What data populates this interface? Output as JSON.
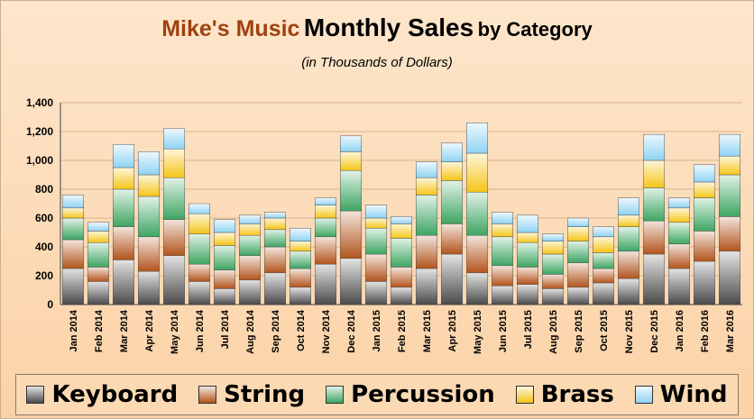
{
  "title": {
    "brand": "Mike's Music",
    "main": "Monthly Sales",
    "suffix": "by Category"
  },
  "subtitle": "(in Thousands of Dollars)",
  "chart_data": {
    "type": "bar",
    "stacked": true,
    "categories": [
      "Jan 2014",
      "Feb 2014",
      "Mar 2014",
      "Apr 2014",
      "May 2014",
      "Jun 2014",
      "Jul 2014",
      "Aug 2014",
      "Sep 2014",
      "Oct 2014",
      "Nov 2014",
      "Dec 2014",
      "Jan 2015",
      "Feb 2015",
      "Mar 2015",
      "Apr 2015",
      "May 2015",
      "Jun 2015",
      "Jul 2015",
      "Aug 2015",
      "Sep 2015",
      "Oct 2015",
      "Nov 2015",
      "Dec 2015",
      "Jan 2016",
      "Feb 2016",
      "Mar 2016"
    ],
    "series": [
      {
        "name": "Keyboard",
        "color": "#4a4a4a",
        "values": [
          250,
          160,
          310,
          230,
          340,
          160,
          110,
          170,
          220,
          120,
          280,
          320,
          160,
          120,
          250,
          350,
          220,
          130,
          140,
          110,
          120,
          150,
          180,
          350,
          250,
          300,
          370
        ]
      },
      {
        "name": "String",
        "color": "#b2541c",
        "values": [
          200,
          100,
          230,
          240,
          250,
          120,
          130,
          170,
          180,
          130,
          190,
          330,
          190,
          140,
          230,
          210,
          260,
          140,
          120,
          100,
          170,
          100,
          190,
          230,
          170,
          210,
          240
        ]
      },
      {
        "name": "Percussion",
        "color": "#3ea562",
        "values": [
          150,
          170,
          260,
          280,
          290,
          210,
          170,
          140,
          120,
          120,
          130,
          280,
          180,
          200,
          280,
          300,
          300,
          200,
          170,
          140,
          150,
          110,
          170,
          230,
          150,
          230,
          290
        ]
      },
      {
        "name": "Brass",
        "color": "#f5c518",
        "values": [
          70,
          80,
          150,
          150,
          200,
          140,
          90,
          80,
          80,
          70,
          90,
          130,
          70,
          100,
          120,
          130,
          270,
          90,
          70,
          90,
          100,
          110,
          80,
          190,
          100,
          110,
          130
        ]
      },
      {
        "name": "Wind",
        "color": "#8fd3f4",
        "values": [
          90,
          60,
          160,
          160,
          140,
          70,
          90,
          60,
          40,
          90,
          50,
          110,
          90,
          50,
          110,
          130,
          210,
          80,
          120,
          50,
          60,
          70,
          120,
          180,
          70,
          120,
          150
        ]
      }
    ],
    "ylim": [
      0,
      1400
    ],
    "yticks": [
      "0",
      "200",
      "400",
      "600",
      "800",
      "1,000",
      "1,200",
      "1,400"
    ],
    "grid": true,
    "legend_position": "bottom"
  }
}
